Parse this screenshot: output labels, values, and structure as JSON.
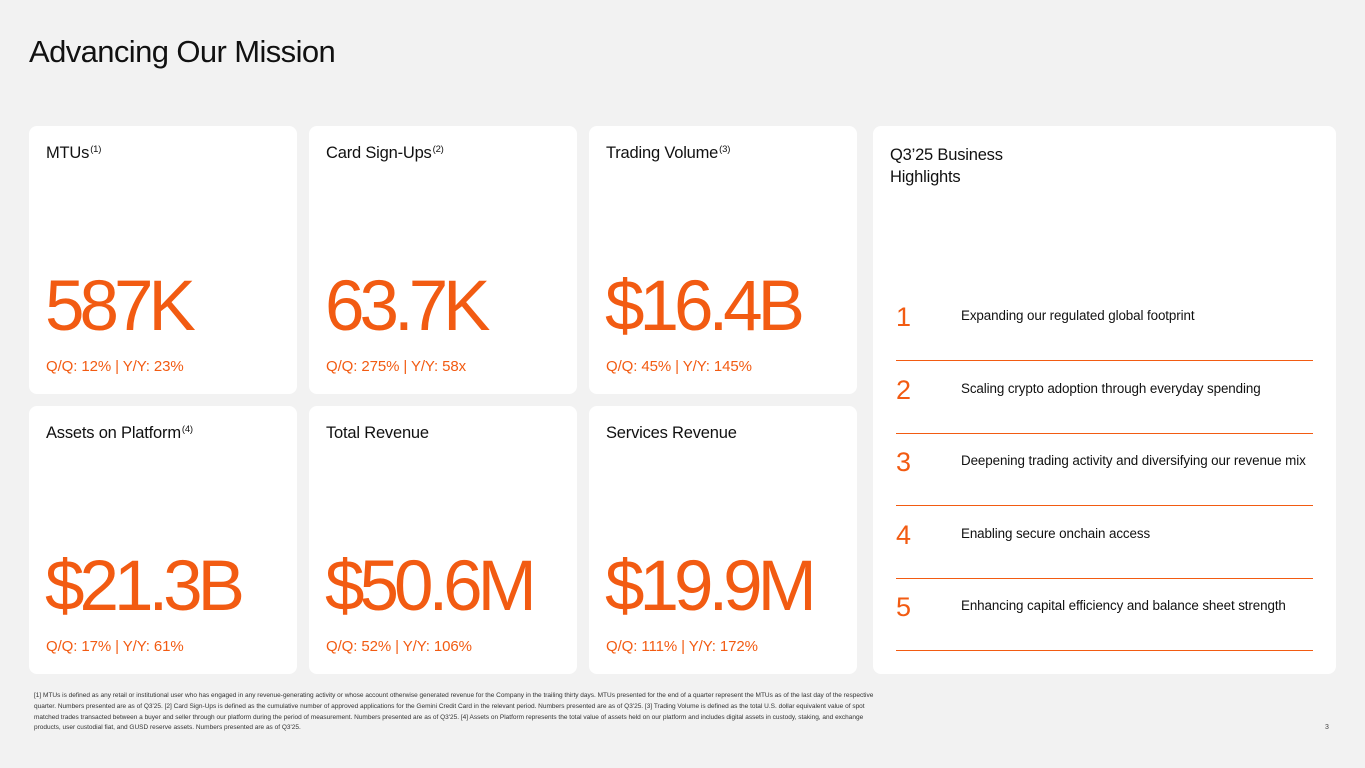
{
  "slide": {
    "title": "Advancing Our Mission",
    "page_number": "3"
  },
  "colors": {
    "accent": "#f25b12",
    "card_background": "#ffffff",
    "page_background": "#f2f2f2"
  },
  "metrics": [
    {
      "label": "MTUs",
      "footnote_ref": "(1)",
      "value": "587K",
      "change": "Q/Q:  12%  | Y/Y: 23%"
    },
    {
      "label": "Card Sign-Ups",
      "footnote_ref": "(2)",
      "value": "63.7K",
      "change": "Q/Q:  275%  | Y/Y: 58x"
    },
    {
      "label": "Trading Volume",
      "footnote_ref": "(3)",
      "value": "$16.4B",
      "change": "Q/Q:  45%  | Y/Y: 145%"
    },
    {
      "label": "Assets on Platform",
      "footnote_ref": "(4)",
      "value": "$21.3B",
      "change": "Q/Q:  17%  | Y/Y: 61%"
    },
    {
      "label": "Total Revenue",
      "footnote_ref": "",
      "value": "$50.6M",
      "change": "Q/Q:  52%  | Y/Y: 106%"
    },
    {
      "label": "Services Revenue",
      "footnote_ref": "",
      "value": "$19.9M",
      "change": "Q/Q:  111%  | Y/Y: 172%"
    }
  ],
  "highlights": {
    "title": "Q3’25 Business Highlights",
    "items": [
      {
        "number": "1",
        "text": "Expanding our regulated global footprint"
      },
      {
        "number": "2",
        "text": "Scaling crypto adoption through everyday spending"
      },
      {
        "number": "3",
        "text": "Deepening trading activity and diversifying our revenue mix"
      },
      {
        "number": "4",
        "text": "Enabling secure onchain access"
      },
      {
        "number": "5",
        "text": "Enhancing capital efficiency and balance sheet strength"
      }
    ]
  },
  "footnotes": "[1] MTUs is defined as any retail or institutional user who has engaged in any revenue-generating activity or whose account otherwise generated revenue for the Company in the trailing thirty days. MTUs presented for the end of a quarter represent the MTUs as of the last day of the respective quarter. Numbers presented are as of Q3'25. [2] Card Sign-Ups is defined as the cumulative number of approved applications for the Gemini Credit Card in the relevant period. Numbers presented are as of Q3'25. [3] Trading Volume is defined as the total U.S. dollar equivalent value of spot matched trades transacted between a buyer and seller through our platform during the period of measurement.  Numbers presented are as of Q3'25. [4] Assets on Platform represents the total value of assets held on our platform and includes digital assets in custody, staking, and exchange products, user custodial fiat, and GUSD reserve assets. Numbers presented are as of Q3'25."
}
